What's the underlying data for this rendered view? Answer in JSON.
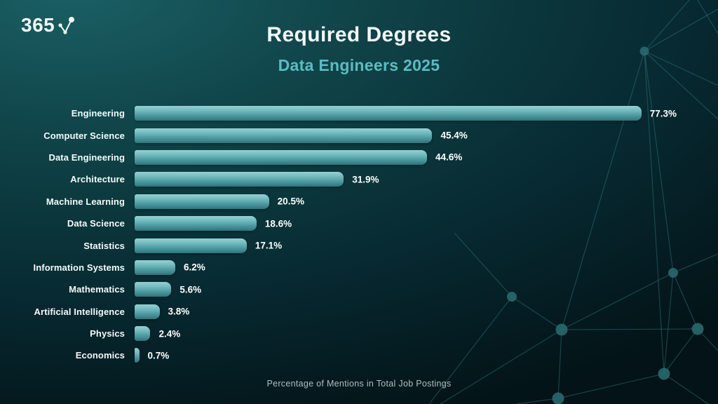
{
  "logo": {
    "text": "365",
    "icon": "trend-checkmark-icon"
  },
  "header": {
    "title": "Required Degrees",
    "subtitle": "Data Engineers 2025"
  },
  "chart_data": {
    "type": "bar",
    "orientation": "horizontal",
    "title": "Required Degrees",
    "subtitle": "Data Engineers 2025",
    "xlabel": "Percentage of Mentions in Total Job Postings",
    "xlim": [
      0,
      80
    ],
    "grid": false,
    "legend": "none",
    "value_suffix": "%",
    "categories": [
      "Engineering",
      "Computer Science",
      "Data Engineering",
      "Architecture",
      "Machine Learning",
      "Data Science",
      "Statistics",
      "Information Systems",
      "Mathematics",
      "Artificial Intelligence",
      "Physics",
      "Economics"
    ],
    "values": [
      77.3,
      45.4,
      44.6,
      31.9,
      20.5,
      18.6,
      17.1,
      6.2,
      5.6,
      3.8,
      2.4,
      0.7
    ],
    "value_labels": [
      "77.3%",
      "45.4%",
      "44.6%",
      "31.9%",
      "20.5%",
      "18.6%",
      "17.1%",
      "6.2%",
      "5.6%",
      "3.8%",
      "2.4%",
      "0.7%"
    ]
  },
  "footer": {
    "caption": "Percentage of Mentions in Total Job Postings"
  },
  "colors": {
    "background_top_left": "#1a6064",
    "background_bottom_right": "#031317",
    "bar_gradient_top": "#96d1d3",
    "bar_gradient_bottom": "#2f747b",
    "title_text": "#f2f8f8",
    "subtitle_text": "#57bec3",
    "category_text": "#f5fafa",
    "value_text": "#ffffff",
    "footer_text": "#adbfbf",
    "network_line": "#2b7478"
  }
}
